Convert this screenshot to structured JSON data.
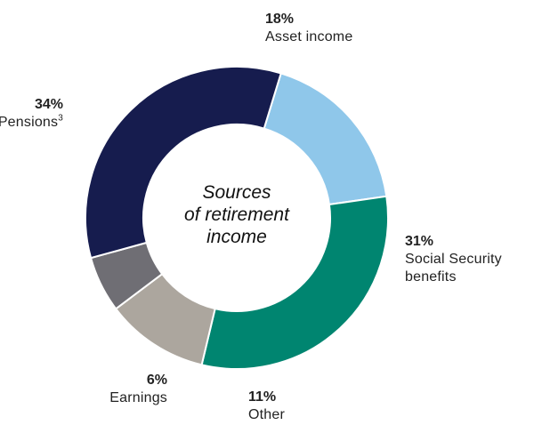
{
  "chart_data": {
    "type": "pie",
    "title": "Sources of retirement income",
    "slices": [
      {
        "label": "Asset income",
        "value": 18,
        "display": "18%",
        "color": "#8fc7ea"
      },
      {
        "label": "Social Security benefits",
        "value": 31,
        "display": "31%",
        "color": "#008570"
      },
      {
        "label": "Other",
        "value": 11,
        "display": "11%",
        "color": "#aca69e"
      },
      {
        "label": "Earnings",
        "value": 6,
        "display": "6%",
        "color": "#6f6e74"
      },
      {
        "label": "Pensions",
        "value": 34,
        "display": "34%",
        "color": "#161c4e",
        "footnote": "3"
      }
    ]
  },
  "center": {
    "line1": "Sources",
    "line2": "of retirement",
    "line3": "income"
  },
  "labels": {
    "asset": {
      "pct": "18%",
      "name": "Asset income"
    },
    "social": {
      "pct": "31%",
      "name_line1": "Social Security",
      "name_line2": "benefits"
    },
    "other": {
      "pct": "11%",
      "name": "Other"
    },
    "earnings": {
      "pct": "6%",
      "name": "Earnings"
    },
    "pensions": {
      "pct": "34%",
      "name": "Pensions",
      "footnote": "3"
    }
  }
}
